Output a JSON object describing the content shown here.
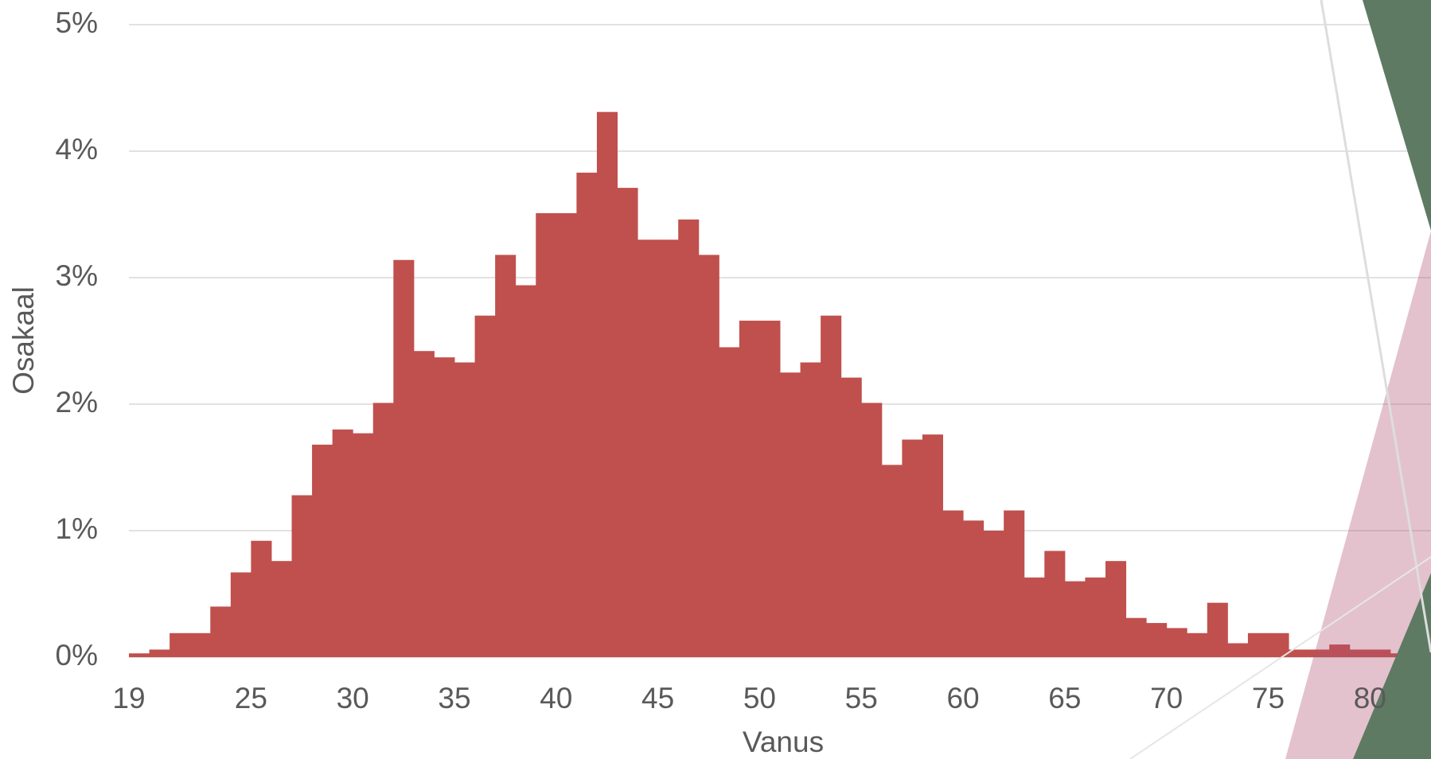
{
  "chart_data": {
    "type": "histogram",
    "xlabel": "Vanus",
    "ylabel": "Osakaal",
    "bins": [
      19,
      20,
      21,
      22,
      23,
      24,
      25,
      26,
      27,
      28,
      29,
      30,
      31,
      32,
      33,
      34,
      35,
      36,
      37,
      38,
      39,
      40,
      41,
      42,
      43,
      44,
      45,
      46,
      47,
      48,
      49,
      50,
      51,
      52,
      53,
      54,
      55,
      56,
      57,
      58,
      59,
      60,
      61,
      62,
      63,
      64,
      65,
      66,
      67,
      68,
      69,
      70,
      71,
      72,
      73,
      74,
      75,
      76,
      77,
      78,
      79,
      80,
      81,
      82,
      83
    ],
    "values": [
      0.03,
      0.06,
      0.19,
      0.19,
      0.4,
      0.67,
      0.92,
      0.76,
      1.28,
      1.68,
      1.8,
      1.77,
      2.01,
      3.14,
      2.42,
      2.37,
      2.33,
      2.7,
      3.18,
      2.94,
      3.51,
      3.51,
      3.83,
      4.31,
      3.71,
      3.3,
      3.3,
      3.46,
      3.18,
      2.45,
      2.66,
      2.66,
      2.25,
      2.33,
      2.7,
      2.21,
      2.01,
      1.52,
      1.72,
      1.76,
      1.16,
      1.08,
      1.0,
      1.16,
      0.63,
      0.84,
      0.6,
      0.63,
      0.76,
      0.31,
      0.27,
      0.23,
      0.19,
      0.43,
      0.11,
      0.19,
      0.19,
      0.06,
      0.06,
      0.1,
      0.06,
      0.06,
      0.03,
      0.03
    ],
    "color": "#c0504d",
    "xlim": [
      19,
      83
    ],
    "xticks": [
      19,
      25,
      30,
      35,
      40,
      45,
      50,
      55,
      60,
      65,
      70,
      75,
      80
    ],
    "ylim": [
      0,
      5
    ],
    "yticks": [
      {
        "value": 0,
        "label": "0%"
      },
      {
        "value": 1,
        "label": "1%"
      },
      {
        "value": 2,
        "label": "2%"
      },
      {
        "value": 3,
        "label": "3%"
      },
      {
        "value": 4,
        "label": "4%"
      },
      {
        "value": 5,
        "label": "5%"
      }
    ],
    "grid": true
  }
}
